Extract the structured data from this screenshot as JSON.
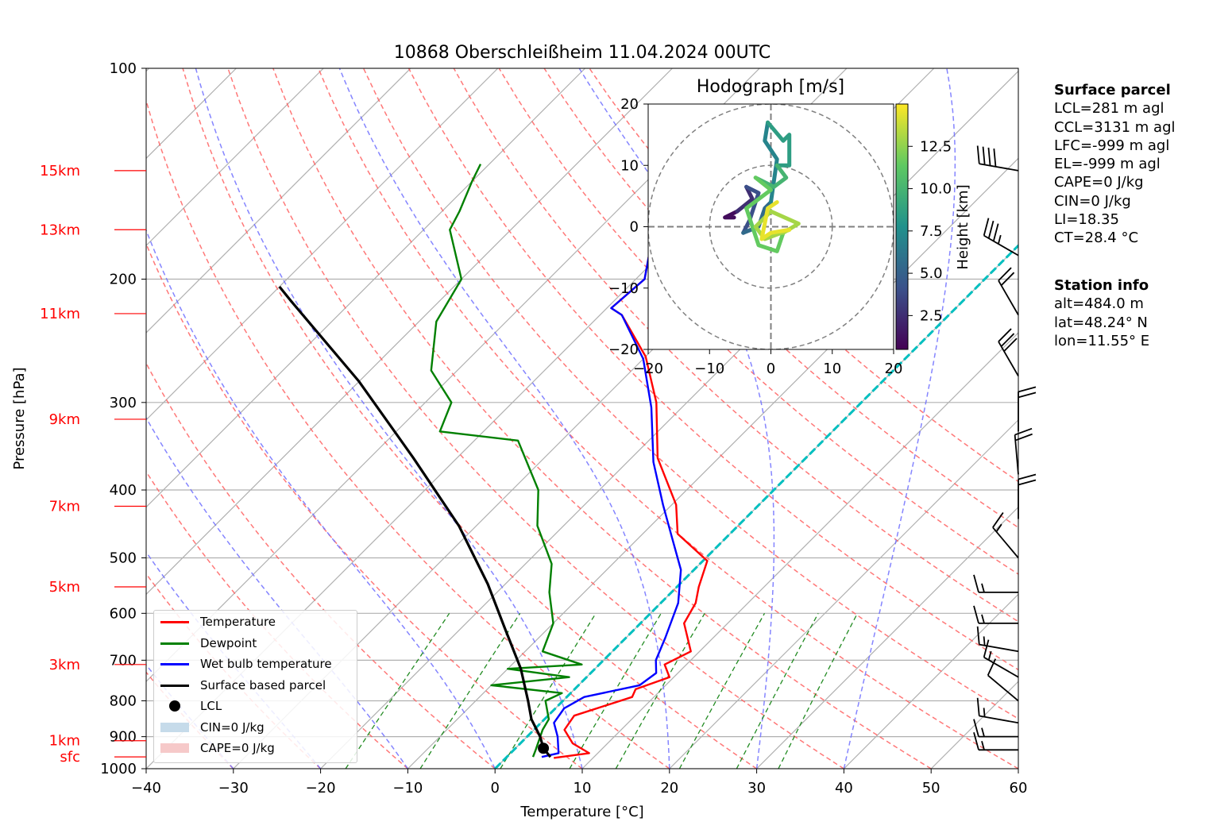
{
  "chart_data": [
    {
      "type": "line",
      "title": "10868 Oberschleißheim 11.04.2024 00UTC",
      "xlabel": "Temperature [°C]",
      "ylabel": "Pressure [hPa]",
      "xlim": [
        -40,
        60
      ],
      "ylim": [
        1000,
        100
      ],
      "y_scale": "log",
      "skew": "skew-T (isotherms slanted 45°)",
      "grid": true,
      "x_ticks": [
        "−40",
        "−30",
        "−20",
        "−10",
        "0",
        "10",
        "20",
        "30",
        "40",
        "50",
        "60"
      ],
      "y_ticks": [
        "100",
        "200",
        "300",
        "400",
        "500",
        "600",
        "700",
        "800",
        "900",
        "1000"
      ],
      "height_labels": [
        {
          "label": "15km",
          "p": 140
        },
        {
          "label": "13km",
          "p": 170
        },
        {
          "label": "11km",
          "p": 224
        },
        {
          "label": "9km",
          "p": 317
        },
        {
          "label": "7km",
          "p": 422
        },
        {
          "label": "5km",
          "p": 550
        },
        {
          "label": "3km",
          "p": 710
        },
        {
          "label": "1km",
          "p": 912
        },
        {
          "label": "sfc",
          "p": 962
        }
      ],
      "legend_position": "lower left",
      "series": [
        {
          "name": "Temperature",
          "color": "#ff0000",
          "points": [
            [
              5.5,
              965
            ],
            [
              9,
              950
            ],
            [
              6,
              920
            ],
            [
              3.5,
              880
            ],
            [
              3,
              840
            ],
            [
              7.5,
              790
            ],
            [
              7,
              770
            ],
            [
              9.5,
              740
            ],
            [
              7.5,
              710
            ],
            [
              9,
              680
            ],
            [
              5,
              620
            ],
            [
              4,
              580
            ],
            [
              2.5,
              550
            ],
            [
              0.5,
              505
            ],
            [
              -6,
              462
            ],
            [
              -9.5,
              420
            ],
            [
              -17,
              360
            ],
            [
              -23.5,
              300
            ],
            [
              -30,
              258
            ],
            [
              -37.5,
              225
            ],
            [
              -39.5,
              220
            ],
            [
              -39,
              200
            ],
            [
              -42,
              180
            ],
            [
              -43,
              170
            ],
            [
              -45,
              155
            ],
            [
              -46,
              145
            ],
            [
              -47,
              137
            ]
          ]
        },
        {
          "name": "Dewpoint",
          "color": "#008000",
          "points": [
            [
              3,
              962
            ],
            [
              2.5,
              940
            ],
            [
              1,
              880
            ],
            [
              0.5,
              850
            ],
            [
              -2,
              800
            ],
            [
              -1,
              780
            ],
            [
              -10,
              760
            ],
            [
              -2,
              740
            ],
            [
              -10,
              720
            ],
            [
              -2,
              710
            ],
            [
              -8,
              680
            ],
            [
              -10,
              620
            ],
            [
              -14,
              560
            ],
            [
              -17,
              510
            ],
            [
              -23,
              450
            ],
            [
              -27,
              400
            ],
            [
              -35,
              340
            ],
            [
              -45,
              330
            ],
            [
              -47,
              300
            ],
            [
              -53,
              270
            ],
            [
              -58,
              230
            ],
            [
              -60,
              200
            ],
            [
              -67,
              170
            ],
            [
              -68,
              160
            ],
            [
              -70,
              145
            ],
            [
              -71,
              137
            ]
          ]
        },
        {
          "name": "Wet bulb temperature",
          "color": "#0000ff",
          "points": [
            [
              4,
              962
            ],
            [
              5.5,
              950
            ],
            [
              3.5,
              900
            ],
            [
              1.5,
              860
            ],
            [
              1,
              820
            ],
            [
              2,
              790
            ],
            [
              7,
              760
            ],
            [
              7.5,
              730
            ],
            [
              6,
              700
            ],
            [
              4.5,
              650
            ],
            [
              2,
              580
            ],
            [
              -1.5,
              520
            ],
            [
              -6,
              470
            ],
            [
              -11,
              420
            ],
            [
              -17,
              365
            ],
            [
              -23.5,
              305
            ],
            [
              -30,
              260
            ],
            [
              -37.5,
              225
            ],
            [
              -39.5,
              220
            ],
            [
              -39,
              200
            ],
            [
              -42,
              180
            ],
            [
              -43,
              170
            ],
            [
              -45,
              155
            ],
            [
              -46,
              145
            ],
            [
              -47,
              137
            ]
          ]
        },
        {
          "name": "Surface based parcel",
          "color": "#000000",
          "points": [
            [
              5,
              962
            ],
            [
              3.2,
              935
            ],
            [
              1.5,
              900
            ],
            [
              -1.5,
              850
            ],
            [
              -4,
              800
            ],
            [
              -8.5,
              720
            ],
            [
              -15,
              630
            ],
            [
              -22,
              545
            ],
            [
              -32,
              450
            ],
            [
              -45,
              360
            ],
            [
              -60,
              280
            ],
            [
              -77,
              215
            ],
            [
              -80,
              205
            ]
          ]
        }
      ],
      "lcl": {
        "name": "LCL",
        "t": 3.2,
        "p": 935
      },
      "cin_label": "CIN=0 J/kg",
      "cape_label": "CAPE=0 J/kg"
    },
    {
      "type": "line",
      "title": "Hodograph [m/s]",
      "xlim": [
        -20,
        20
      ],
      "ylim": [
        -20,
        20
      ],
      "x_ticks": [
        "−20",
        "−10",
        "0",
        "10",
        "20"
      ],
      "y_ticks": [
        "20",
        "10",
        "0",
        "−10",
        "−20"
      ],
      "rings": [
        10,
        20
      ],
      "colorbar": {
        "label": "Height [km]",
        "ticks": [
          "2.5",
          "5.0",
          "7.5",
          "10.0",
          "12.5"
        ],
        "range": [
          0.5,
          15
        ]
      },
      "segments": [
        {
          "height_km": 1,
          "points": [
            [
              -6,
              1.5
            ],
            [
              -7.5,
              1.5
            ],
            [
              -5.5,
              2.5
            ]
          ]
        },
        {
          "height_km": 2.5,
          "points": [
            [
              -5.5,
              2.5
            ],
            [
              -3,
              4.5
            ],
            [
              -4,
              6.5
            ]
          ]
        },
        {
          "height_km": 4,
          "points": [
            [
              -4,
              6.5
            ],
            [
              -2,
              5.5
            ],
            [
              -3.5,
              1
            ],
            [
              -4.5,
              -1
            ]
          ]
        },
        {
          "height_km": 5.5,
          "points": [
            [
              -4.5,
              -1
            ],
            [
              -2,
              0
            ],
            [
              -1,
              3
            ],
            [
              0,
              4
            ]
          ]
        },
        {
          "height_km": 7,
          "points": [
            [
              0,
              4
            ],
            [
              1,
              11
            ],
            [
              -1,
              14
            ],
            [
              -0.5,
              17
            ]
          ]
        },
        {
          "height_km": 8.5,
          "points": [
            [
              -0.5,
              17
            ],
            [
              2,
              14
            ],
            [
              3,
              15
            ],
            [
              3,
              10
            ],
            [
              1,
              10
            ]
          ]
        },
        {
          "height_km": 10,
          "points": [
            [
              1,
              10
            ],
            [
              2.5,
              8
            ],
            [
              0.5,
              6.5
            ],
            [
              -2.5,
              8
            ]
          ]
        },
        {
          "height_km": 11.5,
          "points": [
            [
              -2.5,
              8
            ],
            [
              0,
              6
            ],
            [
              -4,
              3
            ],
            [
              -2,
              -3
            ],
            [
              1,
              -4
            ],
            [
              2,
              -1
            ]
          ]
        },
        {
          "height_km": 13,
          "points": [
            [
              2,
              -1
            ],
            [
              4.5,
              0.5
            ],
            [
              0,
              2.5
            ],
            [
              -2.5,
              0
            ],
            [
              -1,
              -2
            ],
            [
              3,
              -0.5
            ]
          ]
        },
        {
          "height_km": 14.5,
          "points": [
            [
              3,
              -0.5
            ],
            [
              0,
              -1
            ],
            [
              -1.5,
              -2
            ],
            [
              -0.5,
              3
            ],
            [
              1,
              4
            ]
          ]
        }
      ]
    }
  ],
  "surface_parcel": {
    "heading": "Surface parcel",
    "lines": [
      "LCL=281 m agl",
      "CCL=3131 m agl",
      "LFC=-999 m agl",
      "EL=-999 m agl",
      "CAPE=0 J/kg",
      "CIN=0 J/kg",
      "LI=18.35",
      "CT=28.4 °C"
    ]
  },
  "station_info": {
    "heading": "Station info",
    "lines": [
      "alt=484.0 m",
      "lat=48.24° N",
      "lon=11.55° E"
    ]
  },
  "legend": [
    {
      "label": "Temperature",
      "kind": "line",
      "color": "#ff0000"
    },
    {
      "label": "Dewpoint",
      "kind": "line",
      "color": "#008000"
    },
    {
      "label": "Wet bulb temperature",
      "kind": "line",
      "color": "#0000ff"
    },
    {
      "label": "Surface based parcel",
      "kind": "line",
      "color": "#000000"
    },
    {
      "label": "LCL",
      "kind": "dot",
      "color": "#000000"
    },
    {
      "label": "CIN=0 J/kg",
      "kind": "patch",
      "color": "#c6dbea"
    },
    {
      "label": "CAPE=0 J/kg",
      "kind": "patch",
      "color": "#f6c9c9"
    }
  ],
  "colors": {
    "isotherm": "#b0b0b0",
    "dry_adiabat": "#ff6060",
    "moist_adiabat": "#7070ff",
    "mixing_ratio": "#228b22",
    "zero_isotherm_highlight": "#00bfbf",
    "height_label": "#ff0000"
  },
  "wind_barbs": [
    {
      "p": 140,
      "dir_deg": 280,
      "speed_kt": 40
    },
    {
      "p": 185,
      "dir_deg": 300,
      "speed_kt": 35
    },
    {
      "p": 225,
      "dir_deg": 330,
      "speed_kt": 20
    },
    {
      "p": 275,
      "dir_deg": 330,
      "speed_kt": 30
    },
    {
      "p": 330,
      "dir_deg": 360,
      "speed_kt": 20
    },
    {
      "p": 380,
      "dir_deg": 355,
      "speed_kt": 20
    },
    {
      "p": 440,
      "dir_deg": 360,
      "speed_kt": 20
    },
    {
      "p": 500,
      "dir_deg": 320,
      "speed_kt": 15
    },
    {
      "p": 560,
      "dir_deg": 270,
      "speed_kt": 15
    },
    {
      "p": 620,
      "dir_deg": 270,
      "speed_kt": 15
    },
    {
      "p": 680,
      "dir_deg": 280,
      "speed_kt": 15
    },
    {
      "p": 740,
      "dir_deg": 300,
      "speed_kt": 15
    },
    {
      "p": 800,
      "dir_deg": 310,
      "speed_kt": 10
    },
    {
      "p": 860,
      "dir_deg": 280,
      "speed_kt": 15
    },
    {
      "p": 900,
      "dir_deg": 270,
      "speed_kt": 15
    },
    {
      "p": 940,
      "dir_deg": 270,
      "speed_kt": 15
    }
  ]
}
